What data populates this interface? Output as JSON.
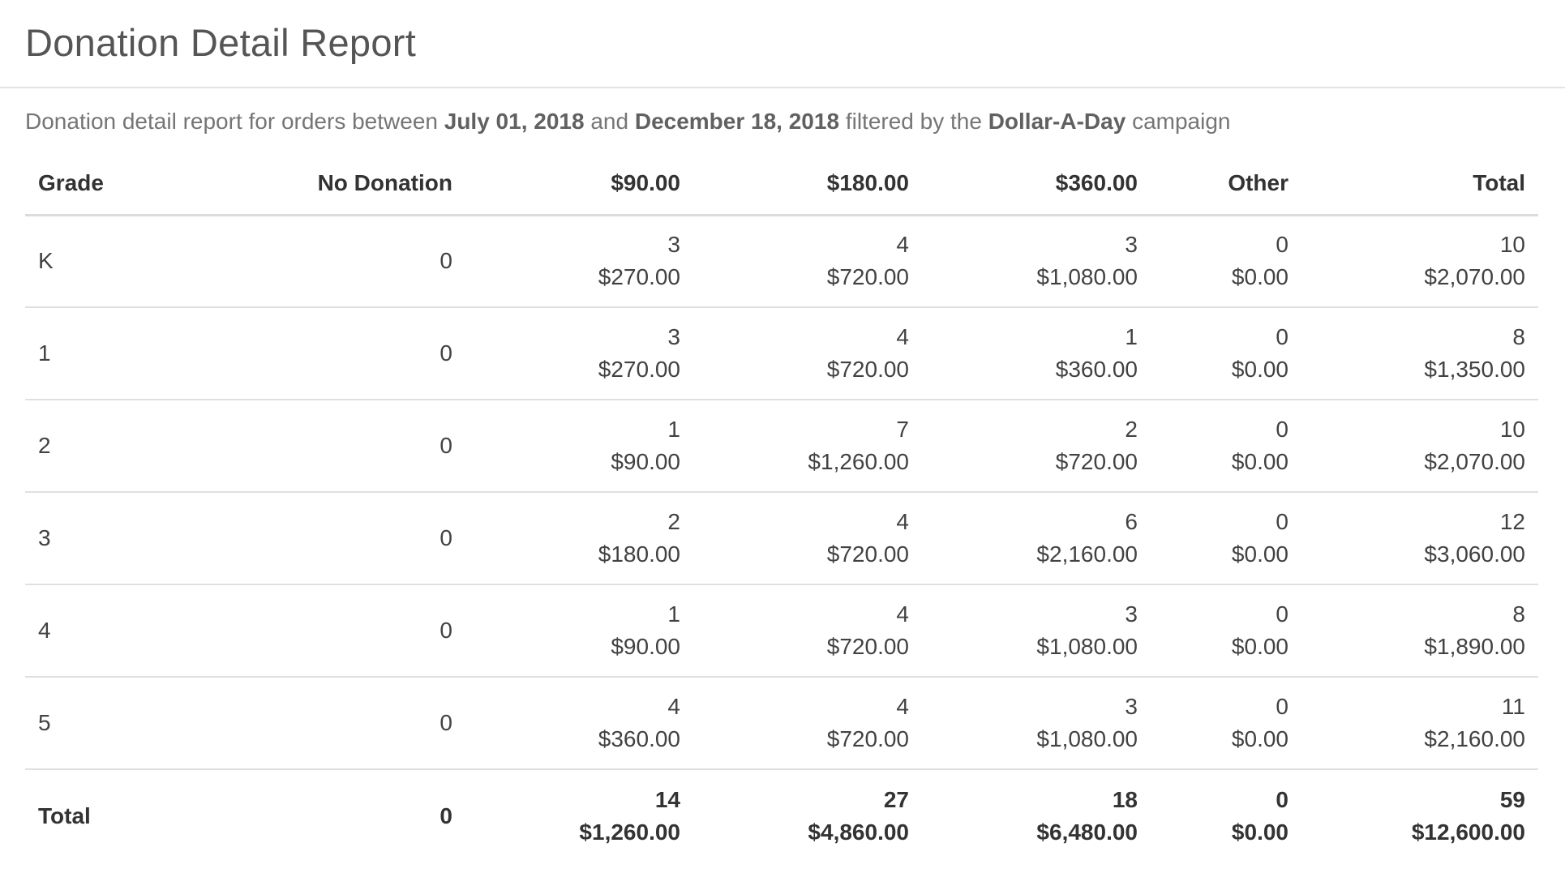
{
  "page": {
    "title": "Donation Detail Report"
  },
  "subtitle": {
    "prefix": "Donation detail report for orders between",
    "start_date": "July 01, 2018",
    "and": "and",
    "end_date": "December 18, 2018",
    "filtered": "filtered by the",
    "campaign": "Dollar-A-Day",
    "suffix": "campaign"
  },
  "table": {
    "headers": {
      "grade": "Grade",
      "no_donation": "No Donation",
      "d90": "$90.00",
      "d180": "$180.00",
      "d360": "$360.00",
      "other": "Other",
      "total": "Total"
    },
    "rows": [
      {
        "grade": "K",
        "no_donation": "0",
        "d90": {
          "count": "3",
          "amount": "$270.00"
        },
        "d180": {
          "count": "4",
          "amount": "$720.00"
        },
        "d360": {
          "count": "3",
          "amount": "$1,080.00"
        },
        "other": {
          "count": "0",
          "amount": "$0.00"
        },
        "total": {
          "count": "10",
          "amount": "$2,070.00"
        }
      },
      {
        "grade": "1",
        "no_donation": "0",
        "d90": {
          "count": "3",
          "amount": "$270.00"
        },
        "d180": {
          "count": "4",
          "amount": "$720.00"
        },
        "d360": {
          "count": "1",
          "amount": "$360.00"
        },
        "other": {
          "count": "0",
          "amount": "$0.00"
        },
        "total": {
          "count": "8",
          "amount": "$1,350.00"
        }
      },
      {
        "grade": "2",
        "no_donation": "0",
        "d90": {
          "count": "1",
          "amount": "$90.00"
        },
        "d180": {
          "count": "7",
          "amount": "$1,260.00"
        },
        "d360": {
          "count": "2",
          "amount": "$720.00"
        },
        "other": {
          "count": "0",
          "amount": "$0.00"
        },
        "total": {
          "count": "10",
          "amount": "$2,070.00"
        }
      },
      {
        "grade": "3",
        "no_donation": "0",
        "d90": {
          "count": "2",
          "amount": "$180.00"
        },
        "d180": {
          "count": "4",
          "amount": "$720.00"
        },
        "d360": {
          "count": "6",
          "amount": "$2,160.00"
        },
        "other": {
          "count": "0",
          "amount": "$0.00"
        },
        "total": {
          "count": "12",
          "amount": "$3,060.00"
        }
      },
      {
        "grade": "4",
        "no_donation": "0",
        "d90": {
          "count": "1",
          "amount": "$90.00"
        },
        "d180": {
          "count": "4",
          "amount": "$720.00"
        },
        "d360": {
          "count": "3",
          "amount": "$1,080.00"
        },
        "other": {
          "count": "0",
          "amount": "$0.00"
        },
        "total": {
          "count": "8",
          "amount": "$1,890.00"
        }
      },
      {
        "grade": "5",
        "no_donation": "0",
        "d90": {
          "count": "4",
          "amount": "$360.00"
        },
        "d180": {
          "count": "4",
          "amount": "$720.00"
        },
        "d360": {
          "count": "3",
          "amount": "$1,080.00"
        },
        "other": {
          "count": "0",
          "amount": "$0.00"
        },
        "total": {
          "count": "11",
          "amount": "$2,160.00"
        }
      }
    ],
    "total_row": {
      "grade": "Total",
      "no_donation": "0",
      "d90": {
        "count": "14",
        "amount": "$1,260.00"
      },
      "d180": {
        "count": "27",
        "amount": "$4,860.00"
      },
      "d360": {
        "count": "18",
        "amount": "$6,480.00"
      },
      "other": {
        "count": "0",
        "amount": "$0.00"
      },
      "total": {
        "count": "59",
        "amount": "$12,600.00"
      }
    }
  }
}
